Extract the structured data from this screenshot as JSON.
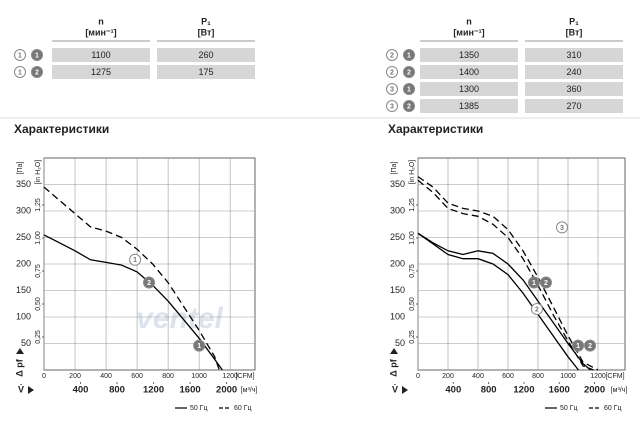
{
  "tables": [
    {
      "columns": [
        {
          "symbol": "n",
          "unit": "[мин⁻¹]"
        },
        {
          "symbol": "P₁",
          "unit": "[Вт]"
        }
      ],
      "rows": [
        {
          "markers": [
            "1",
            "1"
          ],
          "cells": [
            1100,
            260
          ]
        },
        {
          "markers": [
            "1",
            "2"
          ],
          "cells": [
            1275,
            175
          ]
        }
      ]
    },
    {
      "columns": [
        {
          "symbol": "n",
          "unit": "[мин⁻¹]"
        },
        {
          "symbol": "P₁",
          "unit": "[Вт]"
        }
      ],
      "rows": [
        {
          "markers": [
            "2",
            "1"
          ],
          "cells": [
            1350,
            310
          ]
        },
        {
          "markers": [
            "2",
            "2"
          ],
          "cells": [
            1400,
            240
          ]
        },
        {
          "markers": [
            "3",
            "1"
          ],
          "cells": [
            1300,
            360
          ]
        },
        {
          "markers": [
            "3",
            "2"
          ],
          "cells": [
            1385,
            270
          ]
        }
      ]
    }
  ],
  "chart_data": [
    {
      "type": "line",
      "title": "Характеристики",
      "watermark": "ventel",
      "xlabel": "V̇",
      "ylabel": "Δ pf",
      "x_unit": "[CFM]",
      "x2_unit": "[м³/ч]",
      "y_unit": "[Па]",
      "y2_unit": "[in H₂O]",
      "xlim": [
        0,
        1360
      ],
      "xticks": [
        0,
        200,
        400,
        600,
        800,
        1000,
        1200
      ],
      "x2lim": [
        0,
        2311
      ],
      "x2ticks": [
        400,
        800,
        1200,
        1600,
        2000
      ],
      "ylim": [
        0,
        400
      ],
      "yticks": [
        50,
        100,
        150,
        200,
        250,
        300,
        350
      ],
      "y2lim": [
        0,
        1.606
      ],
      "y2ticks": [
        {
          "value": 0.25,
          "label": "0,25"
        },
        {
          "value": 0.5,
          "label": "0,50"
        },
        {
          "value": 0.75,
          "label": "0,75"
        },
        {
          "value": 1,
          "label": "1,00"
        },
        {
          "value": 1.25,
          "label": "1,25"
        }
      ],
      "grid": true,
      "series": [
        {
          "color": "#000000",
          "dash": false,
          "x": [
            0,
            100,
            200,
            300,
            400,
            500,
            600,
            700,
            800,
            900,
            1000,
            1100,
            1150
          ],
          "values": [
            255,
            240,
            225,
            208,
            203,
            198,
            185,
            160,
            130,
            95,
            60,
            20,
            0
          ]
        },
        {
          "color": "#000000",
          "dash": true,
          "x": [
            0,
            100,
            200,
            300,
            400,
            500,
            600,
            700,
            800,
            900,
            1000,
            1100,
            1130
          ],
          "values": [
            345,
            320,
            295,
            270,
            262,
            250,
            228,
            200,
            165,
            120,
            75,
            25,
            0
          ]
        }
      ],
      "annotations": [
        {
          "text": "1",
          "x": 587,
          "y": 208,
          "filled": false
        },
        {
          "text": "2",
          "x": 677,
          "y": 165,
          "filled": true
        },
        {
          "text": "1",
          "x": 1000,
          "y": 46,
          "filled": true
        }
      ],
      "legend": [
        {
          "label": "50 Гц",
          "dash": false
        },
        {
          "label": "60 Гц",
          "dash": true
        }
      ]
    },
    {
      "type": "line",
      "title": "Характеристики",
      "xlabel": "V̇",
      "ylabel": "Δ pf",
      "x_unit": "[CFM]",
      "x2_unit": "[м³/ч]",
      "y_unit": "[Па]",
      "y2_unit": "[in H₂O]",
      "xlim": [
        0,
        1380
      ],
      "xticks": [
        0,
        200,
        400,
        600,
        800,
        1000,
        1200
      ],
      "x2lim": [
        0,
        2345
      ],
      "x2ticks": [
        400,
        800,
        1200,
        1600,
        2000
      ],
      "ylim": [
        0,
        400
      ],
      "yticks": [
        50,
        100,
        150,
        200,
        250,
        300,
        350
      ],
      "y2lim": [
        0,
        1.606
      ],
      "y2ticks": [
        {
          "value": 0.25,
          "label": "0,25"
        },
        {
          "value": 0.5,
          "label": "0,50"
        },
        {
          "value": 0.75,
          "label": "0,75"
        },
        {
          "value": 1,
          "label": "1,00"
        },
        {
          "value": 1.25,
          "label": "1,25"
        }
      ],
      "grid": true,
      "series": [
        {
          "color": "#000000",
          "dash": false,
          "x": [
            0,
            100,
            200,
            300,
            400,
            500,
            600,
            700,
            800,
            900,
            1000,
            1100,
            1150
          ],
          "values": [
            258,
            240,
            225,
            218,
            225,
            220,
            200,
            170,
            130,
            90,
            50,
            12,
            0
          ]
        },
        {
          "color": "#000000",
          "dash": false,
          "x": [
            0,
            100,
            200,
            300,
            400,
            500,
            600,
            700,
            800,
            900,
            1000,
            1070
          ],
          "values": [
            258,
            238,
            218,
            210,
            210,
            200,
            180,
            145,
            105,
            65,
            25,
            0
          ]
        },
        {
          "color": "#000000",
          "dash": true,
          "x": [
            0,
            100,
            200,
            300,
            400,
            500,
            600,
            700,
            800,
            900,
            1000,
            1100,
            1200
          ],
          "values": [
            365,
            345,
            315,
            305,
            300,
            290,
            265,
            225,
            175,
            120,
            65,
            15,
            0
          ]
        },
        {
          "color": "#000000",
          "dash": true,
          "x": [
            0,
            100,
            200,
            300,
            400,
            500,
            600,
            700,
            800,
            900,
            1000,
            1100,
            1170
          ],
          "values": [
            358,
            335,
            305,
            295,
            290,
            275,
            250,
            210,
            160,
            105,
            55,
            8,
            0
          ]
        }
      ],
      "annotations": [
        {
          "text": "3",
          "x": 960,
          "y": 269,
          "filled": false
        },
        {
          "text": "1",
          "x": 773,
          "y": 165,
          "filled": true
        },
        {
          "text": "2",
          "x": 853,
          "y": 165,
          "filled": true
        },
        {
          "text": "2",
          "x": 793,
          "y": 115,
          "filled": false
        },
        {
          "text": "1",
          "x": 1067,
          "y": 46,
          "filled": true
        },
        {
          "text": "2",
          "x": 1147,
          "y": 46,
          "filled": true
        }
      ],
      "legend": [
        {
          "label": "50 Гц",
          "dash": false
        },
        {
          "label": "60 Гц",
          "dash": true
        }
      ]
    }
  ]
}
